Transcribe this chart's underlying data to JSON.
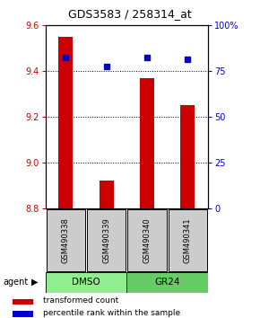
{
  "title": "GDS3583 / 258314_at",
  "samples": [
    "GSM490338",
    "GSM490339",
    "GSM490340",
    "GSM490341"
  ],
  "red_values": [
    9.55,
    8.92,
    9.37,
    9.25
  ],
  "blue_values": [
    9.46,
    9.42,
    9.46,
    9.45
  ],
  "ylim_left": [
    8.8,
    9.6
  ],
  "ylim_right": [
    0,
    100
  ],
  "yticks_left": [
    8.8,
    9.0,
    9.2,
    9.4,
    9.6
  ],
  "yticks_right": [
    0,
    25,
    50,
    75,
    100
  ],
  "red_color": "#CC0000",
  "blue_color": "#0000CC",
  "bar_width": 0.35,
  "legend_red": "transformed count",
  "legend_blue": "percentile rank within the sample",
  "label_color_red": "#CC0000",
  "label_color_blue": "#0000CC",
  "dmso_color": "#90EE90",
  "gr24_color": "#66CD66",
  "gray_color": "#cccccc"
}
